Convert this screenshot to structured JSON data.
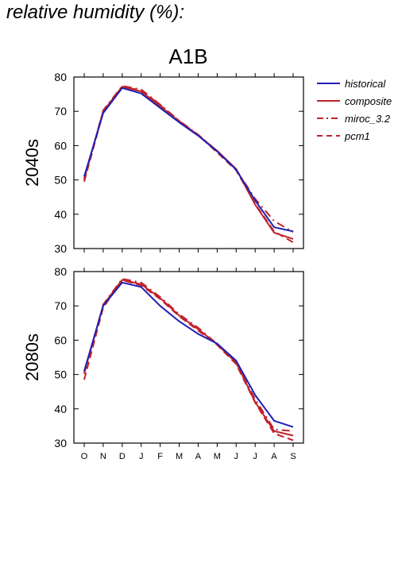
{
  "page": {
    "title": "relative humidity (%):"
  },
  "colors": {
    "historical": "#1f1fb4",
    "model": "#c0222a"
  },
  "chart_data": [
    {
      "type": "line",
      "scenario_title": "A1B",
      "panel_label": "2040s",
      "ylim": [
        30,
        80
      ],
      "yticks": [
        30,
        40,
        50,
        60,
        70,
        80
      ],
      "categories": [
        "O",
        "N",
        "D",
        "J",
        "F",
        "M",
        "A",
        "M",
        "J",
        "J",
        "A",
        "S"
      ],
      "grid": false,
      "legend_position": "right",
      "series": [
        {
          "name": "historical",
          "style": "solid",
          "color": "#1f1fb4",
          "values": [
            51.0,
            69.5,
            76.8,
            75.2,
            71.0,
            66.8,
            62.9,
            58.3,
            53.0,
            44.0,
            36.2,
            35.0
          ]
        },
        {
          "name": "composite",
          "style": "solid",
          "color": "#c0222a",
          "values": [
            50.5,
            70.0,
            77.2,
            75.8,
            71.5,
            67.0,
            63.0,
            58.5,
            53.2,
            42.8,
            34.6,
            32.8
          ]
        },
        {
          "name": "miroc_3.2",
          "style": "dashdot",
          "color": "#c0222a",
          "values": [
            50.0,
            70.3,
            77.4,
            76.4,
            72.0,
            67.3,
            63.2,
            58.4,
            53.0,
            44.5,
            38.0,
            34.8
          ]
        },
        {
          "name": "pcm1",
          "style": "dashed",
          "color": "#c0222a",
          "values": [
            49.5,
            69.8,
            77.0,
            76.2,
            71.8,
            67.2,
            63.1,
            58.0,
            52.8,
            43.0,
            35.0,
            31.8
          ]
        }
      ]
    },
    {
      "type": "line",
      "panel_label": "2080s",
      "ylim": [
        30,
        80
      ],
      "yticks": [
        30,
        40,
        50,
        60,
        70,
        80
      ],
      "categories": [
        "O",
        "N",
        "D",
        "J",
        "F",
        "M",
        "A",
        "M",
        "J",
        "J",
        "A",
        "S"
      ],
      "xticklabels": [
        "O",
        "N",
        "D",
        "J",
        "F",
        "M",
        "A",
        "M",
        "J",
        "J",
        "A",
        "S"
      ],
      "grid": false,
      "series": [
        {
          "name": "historical",
          "style": "solid",
          "color": "#1f1fb4",
          "values": [
            51.0,
            70.0,
            76.8,
            75.5,
            70.0,
            65.5,
            61.8,
            59.0,
            54.0,
            44.0,
            36.5,
            34.7
          ]
        },
        {
          "name": "composite",
          "style": "solid",
          "color": "#c0222a",
          "values": [
            50.5,
            70.2,
            77.6,
            76.3,
            72.3,
            67.2,
            63.2,
            58.8,
            53.5,
            42.0,
            33.5,
            32.2
          ]
        },
        {
          "name": "miroc_3.2",
          "style": "dashdot",
          "color": "#c0222a",
          "values": [
            50.2,
            70.4,
            77.9,
            76.8,
            72.6,
            67.6,
            63.6,
            58.9,
            53.3,
            42.8,
            34.0,
            33.5
          ]
        },
        {
          "name": "pcm1",
          "style": "dashed",
          "color": "#c0222a",
          "values": [
            48.5,
            69.5,
            77.5,
            76.0,
            72.0,
            67.0,
            62.8,
            58.6,
            53.0,
            41.8,
            32.8,
            30.8
          ]
        }
      ]
    }
  ]
}
